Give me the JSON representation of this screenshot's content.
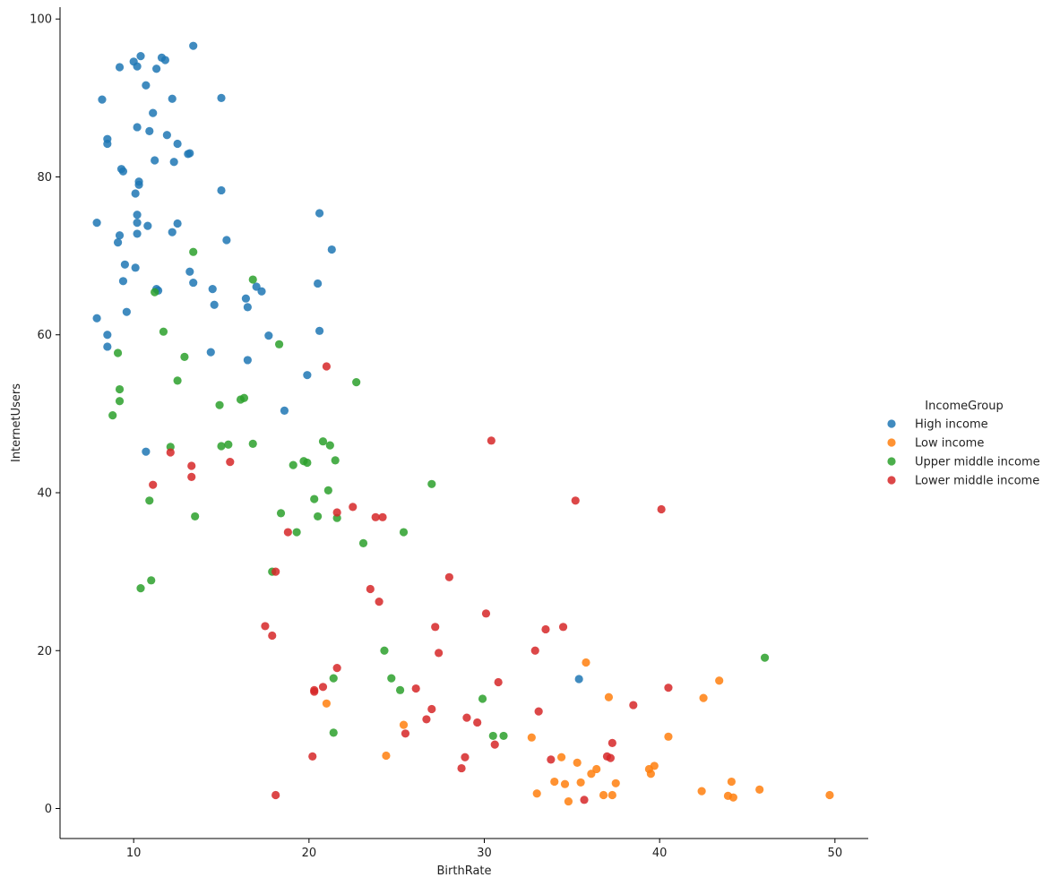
{
  "chart_data": {
    "type": "scatter",
    "title": "",
    "xlabel": "BirthRate",
    "ylabel": "InternetUsers",
    "xlim": [
      5.8,
      51.9
    ],
    "ylim": [
      -3.8,
      101.5
    ],
    "xticks": [
      10,
      20,
      30,
      40,
      50
    ],
    "yticks": [
      0,
      20,
      40,
      60,
      80,
      100
    ],
    "grid": false,
    "legend_title": "IncomeGroup",
    "legend_position": "center-right",
    "series": [
      {
        "name": "High income",
        "color": "#1f77b4",
        "points": [
          [
            7.9,
            74.2
          ],
          [
            7.9,
            62.1
          ],
          [
            8.2,
            89.8
          ],
          [
            8.5,
            84.8
          ],
          [
            8.5,
            84.2
          ],
          [
            8.5,
            60.0
          ],
          [
            8.5,
            58.5
          ],
          [
            9.1,
            71.7
          ],
          [
            9.2,
            72.6
          ],
          [
            9.2,
            93.9
          ],
          [
            9.3,
            81.0
          ],
          [
            9.4,
            80.7
          ],
          [
            9.4,
            66.8
          ],
          [
            9.5,
            68.9
          ],
          [
            9.6,
            62.9
          ],
          [
            10.0,
            94.6
          ],
          [
            10.1,
            77.9
          ],
          [
            10.1,
            68.5
          ],
          [
            10.2,
            94.0
          ],
          [
            10.2,
            86.3
          ],
          [
            10.2,
            75.2
          ],
          [
            10.2,
            74.2
          ],
          [
            10.2,
            72.8
          ],
          [
            10.3,
            79.0
          ],
          [
            10.3,
            79.4
          ],
          [
            10.4,
            95.3
          ],
          [
            10.7,
            91.6
          ],
          [
            10.7,
            45.2
          ],
          [
            10.8,
            73.8
          ],
          [
            10.9,
            85.8
          ],
          [
            11.1,
            88.1
          ],
          [
            11.2,
            82.1
          ],
          [
            11.3,
            93.7
          ],
          [
            11.3,
            65.8
          ],
          [
            11.4,
            65.6
          ],
          [
            11.6,
            95.1
          ],
          [
            11.8,
            94.8
          ],
          [
            11.9,
            85.3
          ],
          [
            12.2,
            89.9
          ],
          [
            12.2,
            73.0
          ],
          [
            12.3,
            81.9
          ],
          [
            12.5,
            84.2
          ],
          [
            12.5,
            74.1
          ],
          [
            13.1,
            82.9
          ],
          [
            13.2,
            83.0
          ],
          [
            13.2,
            68.0
          ],
          [
            13.4,
            96.6
          ],
          [
            13.4,
            66.6
          ],
          [
            14.4,
            57.8
          ],
          [
            14.5,
            65.8
          ],
          [
            14.6,
            63.8
          ],
          [
            15.0,
            90.0
          ],
          [
            15.0,
            78.3
          ],
          [
            15.3,
            72.0
          ],
          [
            16.4,
            64.6
          ],
          [
            16.5,
            63.5
          ],
          [
            16.5,
            56.8
          ],
          [
            17.0,
            66.1
          ],
          [
            17.3,
            65.5
          ],
          [
            17.7,
            59.9
          ],
          [
            18.6,
            50.4
          ],
          [
            19.9,
            54.9
          ],
          [
            20.5,
            66.5
          ],
          [
            20.6,
            75.4
          ],
          [
            20.6,
            60.5
          ],
          [
            21.3,
            70.8
          ],
          [
            35.4,
            16.4
          ]
        ]
      },
      {
        "name": "Low income",
        "color": "#ff7f0e",
        "points": [
          [
            21.0,
            13.3
          ],
          [
            24.4,
            6.7
          ],
          [
            25.4,
            10.6
          ],
          [
            32.7,
            9.0
          ],
          [
            33.0,
            1.9
          ],
          [
            34.0,
            3.4
          ],
          [
            34.4,
            6.5
          ],
          [
            34.6,
            3.1
          ],
          [
            34.8,
            0.9
          ],
          [
            35.3,
            5.8
          ],
          [
            35.5,
            3.3
          ],
          [
            35.8,
            18.5
          ],
          [
            36.1,
            4.4
          ],
          [
            36.4,
            5.0
          ],
          [
            36.8,
            1.7
          ],
          [
            37.1,
            14.1
          ],
          [
            37.3,
            1.7
          ],
          [
            37.5,
            3.2
          ],
          [
            39.4,
            5.0
          ],
          [
            39.5,
            4.4
          ],
          [
            39.7,
            5.4
          ],
          [
            40.5,
            9.1
          ],
          [
            42.4,
            2.2
          ],
          [
            42.5,
            14.0
          ],
          [
            43.4,
            16.2
          ],
          [
            43.9,
            1.6
          ],
          [
            44.1,
            3.4
          ],
          [
            44.2,
            1.4
          ],
          [
            45.7,
            2.4
          ],
          [
            49.7,
            1.7
          ]
        ]
      },
      {
        "name": "Upper middle income",
        "color": "#2ca02c",
        "points": [
          [
            8.8,
            49.8
          ],
          [
            9.1,
            57.7
          ],
          [
            9.2,
            53.1
          ],
          [
            9.2,
            51.6
          ],
          [
            10.4,
            27.9
          ],
          [
            10.9,
            39.0
          ],
          [
            11.0,
            28.9
          ],
          [
            11.2,
            65.4
          ],
          [
            11.7,
            60.4
          ],
          [
            12.1,
            45.8
          ],
          [
            12.5,
            54.2
          ],
          [
            12.9,
            57.2
          ],
          [
            13.4,
            70.5
          ],
          [
            13.5,
            37.0
          ],
          [
            14.9,
            51.1
          ],
          [
            15.0,
            45.9
          ],
          [
            15.4,
            46.1
          ],
          [
            16.1,
            51.8
          ],
          [
            16.3,
            52.0
          ],
          [
            16.8,
            67.0
          ],
          [
            16.8,
            46.2
          ],
          [
            17.9,
            30.0
          ],
          [
            18.3,
            58.8
          ],
          [
            18.4,
            37.4
          ],
          [
            19.1,
            43.5
          ],
          [
            19.3,
            35.0
          ],
          [
            19.7,
            44.0
          ],
          [
            19.9,
            43.8
          ],
          [
            20.3,
            39.2
          ],
          [
            20.5,
            37.0
          ],
          [
            20.8,
            46.5
          ],
          [
            21.1,
            40.3
          ],
          [
            21.2,
            46.0
          ],
          [
            21.4,
            16.5
          ],
          [
            21.4,
            9.6
          ],
          [
            21.5,
            44.1
          ],
          [
            21.6,
            36.8
          ],
          [
            22.7,
            54.0
          ],
          [
            23.1,
            33.6
          ],
          [
            24.3,
            20.0
          ],
          [
            24.7,
            16.5
          ],
          [
            25.2,
            15.0
          ],
          [
            25.4,
            35.0
          ],
          [
            27.0,
            41.1
          ],
          [
            29.9,
            13.9
          ],
          [
            30.5,
            9.2
          ],
          [
            31.1,
            9.2
          ],
          [
            46.0,
            19.1
          ]
        ]
      },
      {
        "name": "Lower middle income",
        "color": "#d62728",
        "points": [
          [
            11.1,
            41.0
          ],
          [
            12.1,
            45.1
          ],
          [
            13.3,
            43.4
          ],
          [
            13.3,
            42.0
          ],
          [
            15.5,
            43.9
          ],
          [
            17.5,
            23.1
          ],
          [
            17.9,
            21.9
          ],
          [
            18.1,
            30.0
          ],
          [
            18.1,
            1.7
          ],
          [
            18.8,
            35.0
          ],
          [
            20.2,
            6.6
          ],
          [
            20.3,
            15.0
          ],
          [
            20.3,
            14.8
          ],
          [
            20.8,
            15.4
          ],
          [
            21.0,
            56.0
          ],
          [
            21.6,
            17.8
          ],
          [
            21.6,
            37.5
          ],
          [
            22.5,
            38.2
          ],
          [
            23.5,
            27.8
          ],
          [
            23.8,
            36.9
          ],
          [
            24.0,
            26.2
          ],
          [
            24.2,
            36.9
          ],
          [
            25.5,
            9.5
          ],
          [
            26.1,
            15.2
          ],
          [
            26.7,
            11.3
          ],
          [
            27.0,
            12.6
          ],
          [
            27.2,
            23.0
          ],
          [
            27.4,
            19.7
          ],
          [
            28.0,
            29.3
          ],
          [
            28.7,
            5.1
          ],
          [
            28.9,
            6.5
          ],
          [
            29.0,
            11.5
          ],
          [
            29.6,
            10.9
          ],
          [
            30.1,
            24.7
          ],
          [
            30.4,
            46.6
          ],
          [
            30.6,
            8.1
          ],
          [
            30.8,
            16.0
          ],
          [
            32.9,
            20.0
          ],
          [
            33.1,
            12.3
          ],
          [
            33.5,
            22.7
          ],
          [
            33.8,
            6.2
          ],
          [
            34.5,
            23.0
          ],
          [
            35.2,
            39.0
          ],
          [
            35.7,
            1.1
          ],
          [
            37.0,
            6.6
          ],
          [
            37.2,
            6.4
          ],
          [
            37.3,
            8.3
          ],
          [
            38.5,
            13.1
          ],
          [
            40.1,
            37.9
          ],
          [
            40.5,
            15.3
          ]
        ]
      }
    ]
  }
}
